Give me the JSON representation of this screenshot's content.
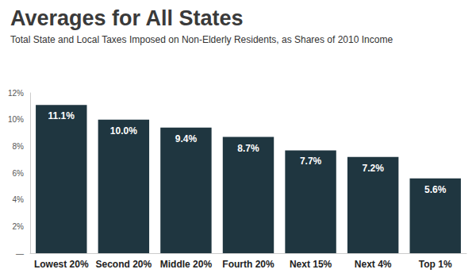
{
  "chart_data": {
    "type": "bar",
    "title": "Averages for All States",
    "subtitle": "Total State and Local Taxes Imposed on Non-Elderly Residents, as Shares of 2010 Income",
    "categories": [
      "Lowest 20%",
      "Second 20%",
      "Middle 20%",
      "Fourth 20%",
      "Next 15%",
      "Next 4%",
      "Top 1%"
    ],
    "values": [
      11.1,
      10.0,
      9.4,
      8.7,
      7.7,
      7.2,
      5.6
    ],
    "value_labels": [
      "11.1%",
      "10.0%",
      "9.4%",
      "8.7%",
      "7.7%",
      "7.2%",
      "5.6%"
    ],
    "color": "#1f3640",
    "ylim": [
      0,
      12
    ],
    "yticks": [
      {
        "value": 0,
        "label": "—"
      },
      {
        "value": 2,
        "label": "2%"
      },
      {
        "value": 4,
        "label": "4%"
      },
      {
        "value": 6,
        "label": "6%"
      },
      {
        "value": 8,
        "label": "8%"
      },
      {
        "value": 10,
        "label": "10%"
      },
      {
        "value": 12,
        "label": "12%"
      }
    ],
    "grid": false,
    "data_labels": true
  }
}
